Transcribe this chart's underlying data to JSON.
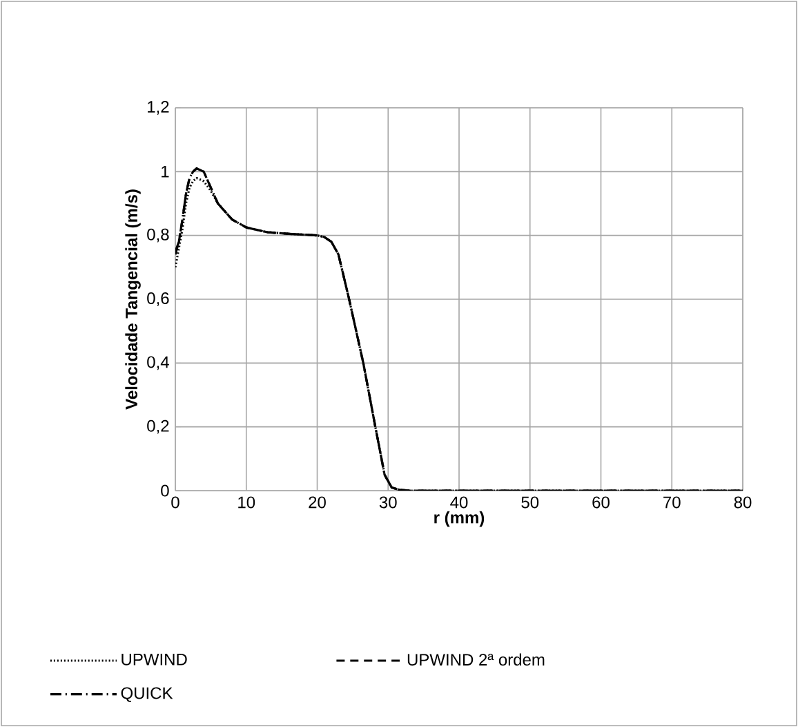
{
  "chart_data": {
    "type": "line",
    "xlabel": "r (mm)",
    "ylabel": "Velocidade Tangencial (m/s)",
    "x": [
      0,
      0.5,
      1,
      1.5,
      2,
      2.5,
      3,
      4,
      5,
      6,
      8,
      10,
      13,
      16,
      20,
      21,
      22,
      23,
      24.5,
      26.5,
      28.2,
      29.5,
      30.5,
      31.5,
      33,
      40,
      50,
      60,
      70,
      80
    ],
    "series": [
      {
        "name": "UPWIND",
        "color": "#000000",
        "line_style": "dotted",
        "values": [
          0.7,
          0.76,
          0.82,
          0.9,
          0.95,
          0.97,
          0.98,
          0.97,
          0.94,
          0.9,
          0.85,
          0.825,
          0.81,
          0.805,
          0.8,
          0.795,
          0.78,
          0.74,
          0.6,
          0.4,
          0.2,
          0.05,
          0.01,
          0.003,
          0,
          0,
          0,
          0,
          0,
          0
        ]
      },
      {
        "name": "UPWIND 2ª ordem",
        "color": "#000000",
        "line_style": "dashed",
        "values": [
          0.74,
          0.78,
          0.85,
          0.93,
          0.98,
          1.0,
          1.01,
          1.0,
          0.95,
          0.9,
          0.85,
          0.825,
          0.81,
          0.805,
          0.8,
          0.795,
          0.78,
          0.74,
          0.6,
          0.4,
          0.2,
          0.05,
          0.01,
          0.003,
          0,
          0,
          0,
          0,
          0,
          0
        ]
      },
      {
        "name": "QUICK",
        "color": "#000000",
        "line_style": "dashdot",
        "values": [
          0.75,
          0.78,
          0.85,
          0.93,
          0.98,
          1.0,
          1.01,
          1.0,
          0.95,
          0.9,
          0.85,
          0.825,
          0.81,
          0.805,
          0.8,
          0.795,
          0.78,
          0.74,
          0.6,
          0.4,
          0.2,
          0.05,
          0.01,
          0.003,
          0,
          0,
          0,
          0,
          0,
          0
        ]
      }
    ],
    "xlim": [
      0,
      80
    ],
    "xticks": [
      0,
      10,
      20,
      30,
      40,
      50,
      60,
      70,
      80
    ],
    "ylim": [
      0,
      1.2
    ],
    "yticks": [
      0,
      {
        "value": 0.2,
        "label": "0,2"
      },
      {
        "value": 0.4,
        "label": "0,4"
      },
      {
        "value": 0.6,
        "label": "0,6"
      },
      {
        "value": 0.8,
        "label": "0,8"
      },
      1,
      {
        "value": 1.2,
        "label": "1,2"
      }
    ],
    "grid": true,
    "legend": "bottom",
    "marker": "none"
  }
}
